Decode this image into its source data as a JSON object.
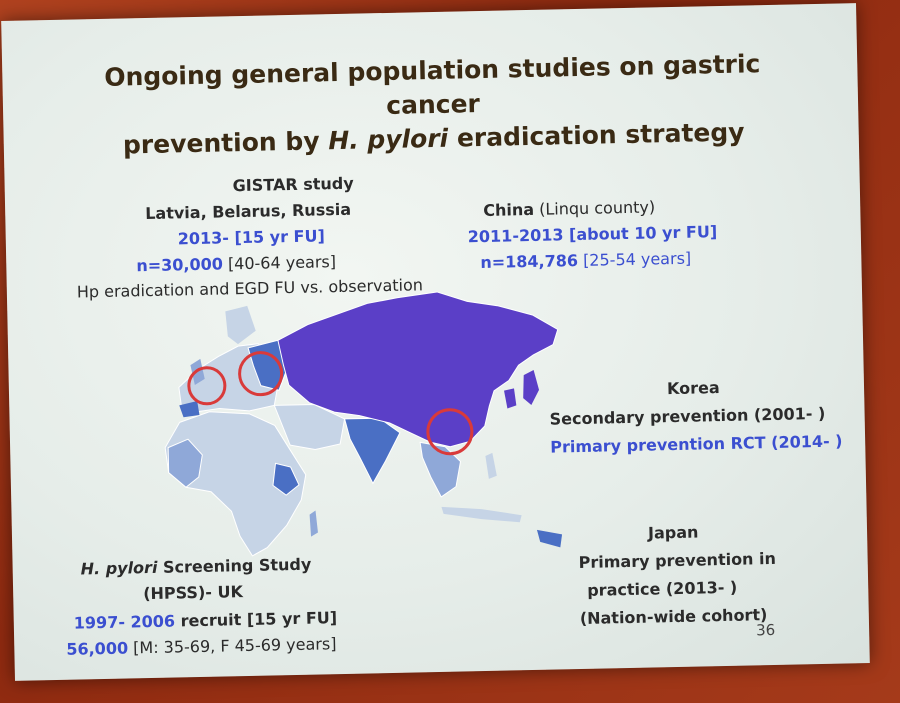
{
  "slide": {
    "title_line1": "Ongoing general population studies on gastric cancer",
    "title_line2_pre": "prevention by ",
    "title_line2_italic": "H. pylori",
    "title_line2_post": " eradication strategy",
    "gistar": {
      "heading": "GISTAR study",
      "countries": "Latvia, Belarus, Russia",
      "years_blue": "2013-  [15 yr FU]",
      "n_blue": "n=30,000",
      "n_range": " [40-64 years]",
      "design": "Hp eradication and EGD FU vs. observation"
    },
    "china": {
      "heading_bold": "China",
      "heading_rest": " (Linqu county)",
      "years_blue": "2011-2013  [about 10 yr FU]",
      "n_blue": "n=184,786",
      "n_range": " [25-54 years]"
    },
    "korea": {
      "heading": "Korea",
      "secondary": "Secondary prevention (2001- )",
      "primary_blue": "Primary prevention RCT (2014- )"
    },
    "hpss": {
      "heading_italic": "H. pylori",
      "heading_rest": " Screening Study",
      "subheading": "(HPSS)- UK",
      "years_blue": "1997- 2006",
      "years_rest": " recruit   [15 yr FU]",
      "n_blue": "56,000",
      "n_rest": " [M: 35-69, F 45-69 years]"
    },
    "japan": {
      "heading": "Japan",
      "line1": "Primary prevention in",
      "line2": "practice (2013-  )",
      "line3": "(Nation-wide cohort)"
    },
    "page_number": "36"
  },
  "colors": {
    "map_main": "#5b3fc7",
    "map_light": "#c6d4e6",
    "map_mid": "#8fa8d8",
    "map_blue": "#4a6fc4",
    "circle": "#d93a3a",
    "blue_text": "#3b4fd0",
    "title_text": "#3a2a14"
  }
}
